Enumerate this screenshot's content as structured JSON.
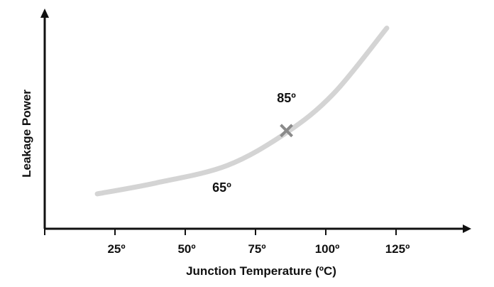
{
  "chart_data": {
    "type": "line",
    "title": "",
    "xlabel": "Junction Temperature (ºC)",
    "ylabel": "Leakage Power",
    "xlim": [
      0,
      150
    ],
    "ylim": [
      0,
      1
    ],
    "x_ticks": [
      25,
      50,
      75,
      100,
      125
    ],
    "x_tick_labels": [
      "25º",
      "50º",
      "75º",
      "100º",
      "125º"
    ],
    "y_ticks": [],
    "grid": false,
    "series": [
      {
        "x": [
          18.7,
          39.6,
          64.9,
          85.9,
          102.8,
          121.7
        ],
        "y": [
          0.16,
          0.21,
          0.29,
          0.44,
          0.62,
          0.92
        ],
        "color": "#d4d4d4"
      }
    ],
    "marker": {
      "x": 86,
      "y": 0.45,
      "symbol": "x",
      "color": "#8a8a8a"
    },
    "annotations": [
      {
        "text": "85º",
        "x": 86,
        "y": 0.58
      },
      {
        "text": "65º",
        "x": 63,
        "y": 0.17
      }
    ]
  }
}
